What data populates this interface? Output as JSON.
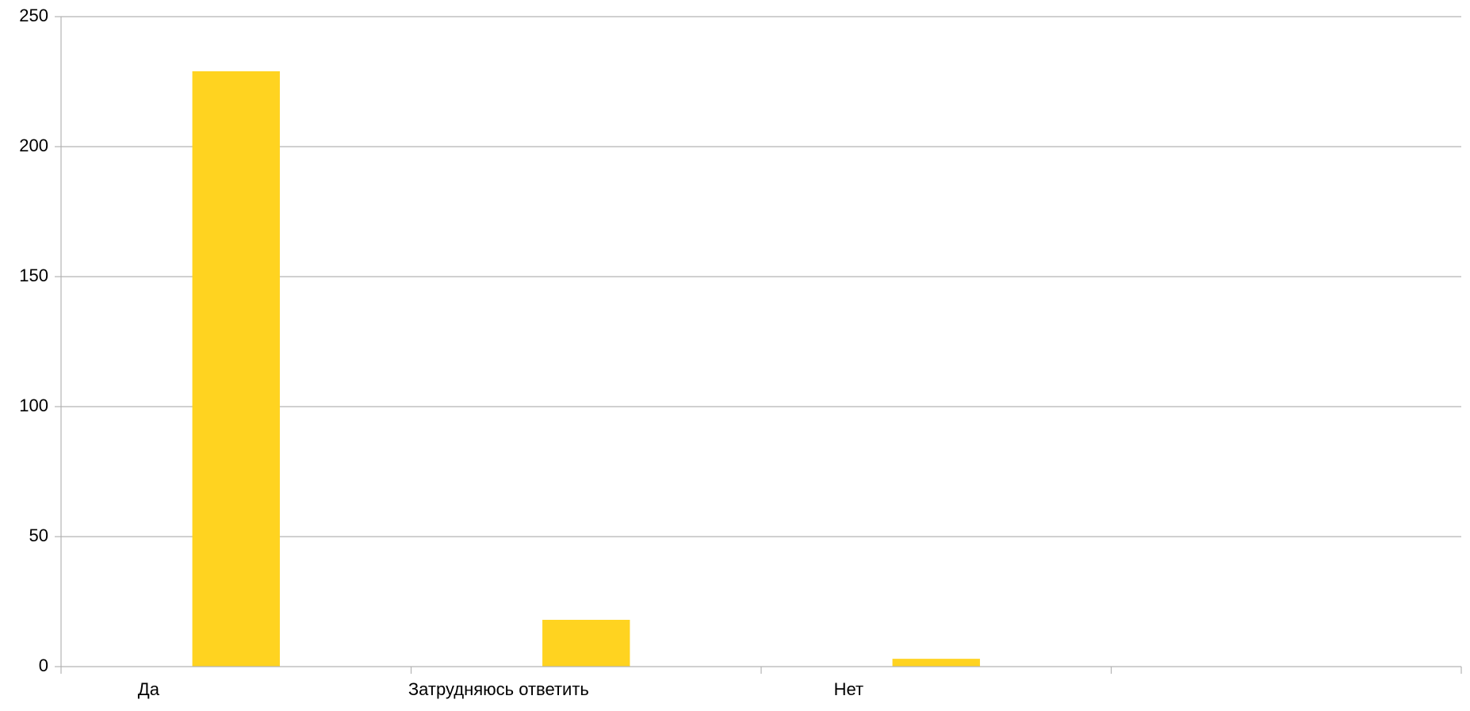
{
  "chart_data": {
    "type": "bar",
    "title": "",
    "xlabel": "",
    "ylabel": "",
    "categories": [
      "Да",
      "Затрудняюсь ответить",
      "Нет",
      ""
    ],
    "values": [
      229,
      18,
      3,
      0
    ],
    "ylim": [
      0,
      250
    ],
    "yticks": [
      0,
      50,
      100,
      150,
      200,
      250
    ],
    "grid": true,
    "legend": "none",
    "colors": {
      "bar": "#FFD320",
      "grid": "#B3B3B3",
      "axis": "#B3B3B3",
      "text": "#000000",
      "background": "#FFFFFF"
    }
  }
}
